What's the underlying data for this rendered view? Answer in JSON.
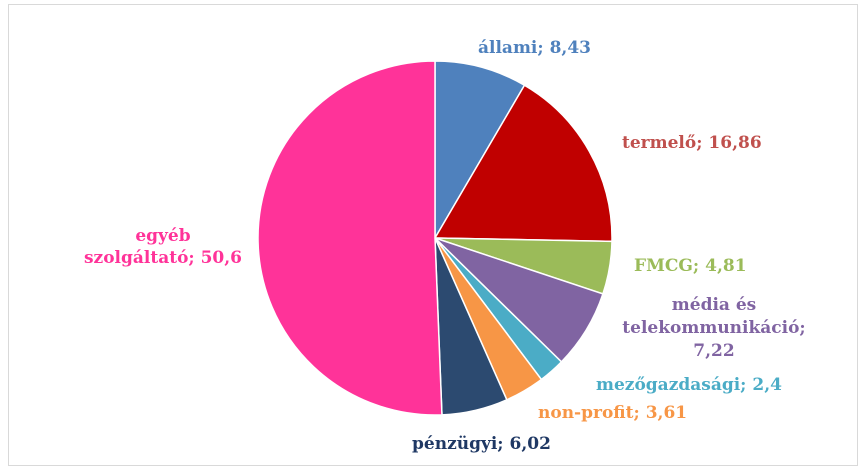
{
  "chart_data": {
    "type": "pie",
    "title": "",
    "slices": [
      {
        "category": "állami",
        "value": 8.43,
        "color": "#4f81bd",
        "label_lines": [
          "állami; 8,43"
        ]
      },
      {
        "category": "termelő",
        "value": 16.86,
        "color": "#c00000",
        "label_lines": [
          "termelő; 16,86"
        ]
      },
      {
        "category": "FMCG",
        "value": 4.81,
        "color": "#9bbb59",
        "label_lines": [
          "FMCG; 4,81"
        ]
      },
      {
        "category": "média és telekommunikáció",
        "value": 7.22,
        "color": "#8064a2",
        "label_lines": [
          "média és",
          "telekommunikáció;",
          "7,22"
        ]
      },
      {
        "category": "mezőgazdasági",
        "value": 2.4,
        "color": "#4bacc6",
        "label_lines": [
          "mezőgazdasági; 2,4"
        ]
      },
      {
        "category": "non-profit",
        "value": 3.61,
        "color": "#f79646",
        "label_lines": [
          "non-profit; 3,61"
        ]
      },
      {
        "category": "pénzügyi",
        "value": 6.02,
        "color": "#2c4a70",
        "label_lines": [
          "pénzügyi; 6,02"
        ]
      },
      {
        "category": "egyéb szolgáltató",
        "value": 50.6,
        "color": "#ff3399",
        "label_lines": [
          "egyéb",
          "szolgáltató; 50,6"
        ]
      }
    ],
    "label_colors": {
      "állami": "#4f81bd",
      "termelő": "#c0504d",
      "FMCG": "#9bbb59",
      "média és telekommunikáció": "#8064a2",
      "mezőgazdasági": "#4bacc6",
      "non-profit": "#f79646",
      "pénzügyi": "#1f3864",
      "egyéb szolgáltató": "#ff3399"
    },
    "legend": "none"
  }
}
